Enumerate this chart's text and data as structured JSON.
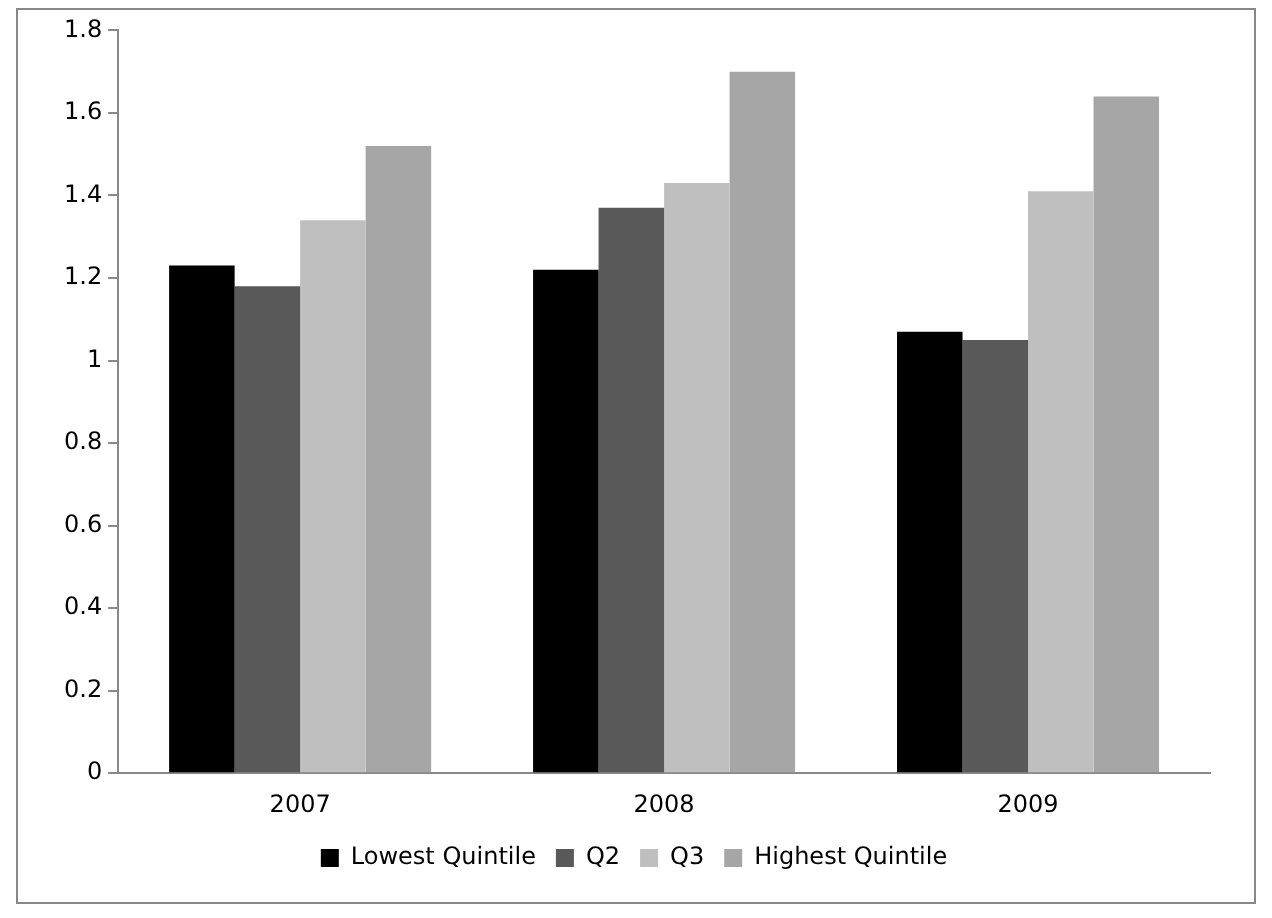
{
  "chart_data": {
    "type": "bar",
    "categories": [
      "2007",
      "2008",
      "2009"
    ],
    "series": [
      {
        "name": "Lowest Quintile",
        "color": "#000000",
        "values": [
          1.23,
          1.22,
          1.07
        ]
      },
      {
        "name": "Q2",
        "color": "#595959",
        "values": [
          1.18,
          1.37,
          1.05
        ]
      },
      {
        "name": "Q3",
        "color": "#bfbfbf",
        "values": [
          1.34,
          1.43,
          1.41
        ]
      },
      {
        "name": "Highest Quintile",
        "color": "#a6a6a6",
        "values": [
          1.52,
          1.7,
          1.64
        ]
      }
    ],
    "ylim": [
      0,
      1.8
    ],
    "yticks": [
      0,
      0.2,
      0.4,
      0.6,
      0.8,
      1,
      1.2,
      1.4,
      1.6,
      1.8
    ],
    "grid": false,
    "legend": "bottom"
  }
}
